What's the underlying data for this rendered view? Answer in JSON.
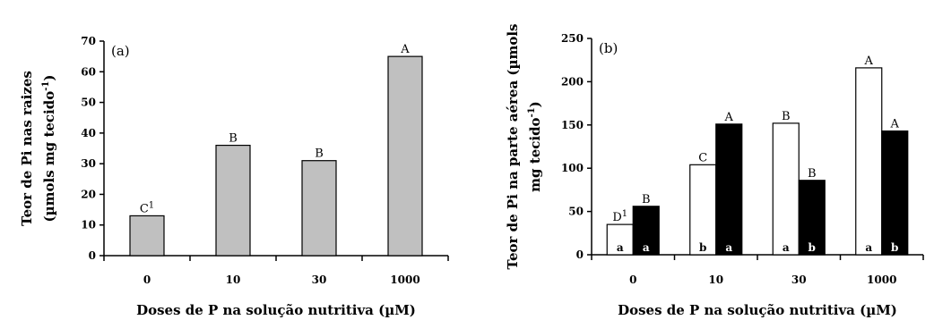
{
  "chart_data": [
    {
      "type": "bar",
      "panel_label": "(a)",
      "categories": [
        "0",
        "10",
        "30",
        "1000"
      ],
      "xlabel": "Doses de P na solução nutritiva (µM)",
      "ylabel_line1": "Teor de Pi nas raizes",
      "ylabel_line2_main": "(µmols mg tecido",
      "ylabel_line2_sup": "-1",
      "ylabel_line2_end": ")",
      "ylim": [
        0,
        70
      ],
      "yticks": [
        "0",
        "10",
        "20",
        "30",
        "40",
        "50",
        "60",
        "70"
      ],
      "series": [
        {
          "values": [
            13,
            36,
            31,
            65
          ],
          "color": "#c0c0c0",
          "labels": [
            "C",
            "B",
            "B",
            "A"
          ]
        }
      ],
      "label_superscript": {
        "bar_index": 0,
        "text": "1"
      }
    },
    {
      "type": "bar",
      "panel_label": "(b)",
      "categories": [
        "0",
        "10",
        "30",
        "1000"
      ],
      "xlabel": "Doses de P na solução nutritiva (µM)",
      "ylabel_line1": "Teor de Pi na parte aérea (µmols",
      "ylabel_line2_main": "mg tecido",
      "ylabel_line2_sup": "-1",
      "ylabel_line2_end": ")",
      "ylim": [
        0,
        250
      ],
      "yticks": [
        "0",
        "50",
        "100",
        "150",
        "200",
        "250"
      ],
      "series": [
        {
          "values": [
            35,
            104,
            152,
            216
          ],
          "color": "#ffffff",
          "top_labels": [
            "D",
            "C",
            "B",
            "A"
          ],
          "inner_labels": [
            "a",
            "b",
            "a",
            "a"
          ]
        },
        {
          "values": [
            56,
            151,
            86,
            143
          ],
          "color": "#000000",
          "top_labels": [
            "B",
            "A",
            "B",
            "A"
          ],
          "inner_labels": [
            "a",
            "a",
            "b",
            "b"
          ]
        }
      ],
      "label_superscript": {
        "series_index": 0,
        "bar_index": 0,
        "text": "1"
      }
    }
  ]
}
